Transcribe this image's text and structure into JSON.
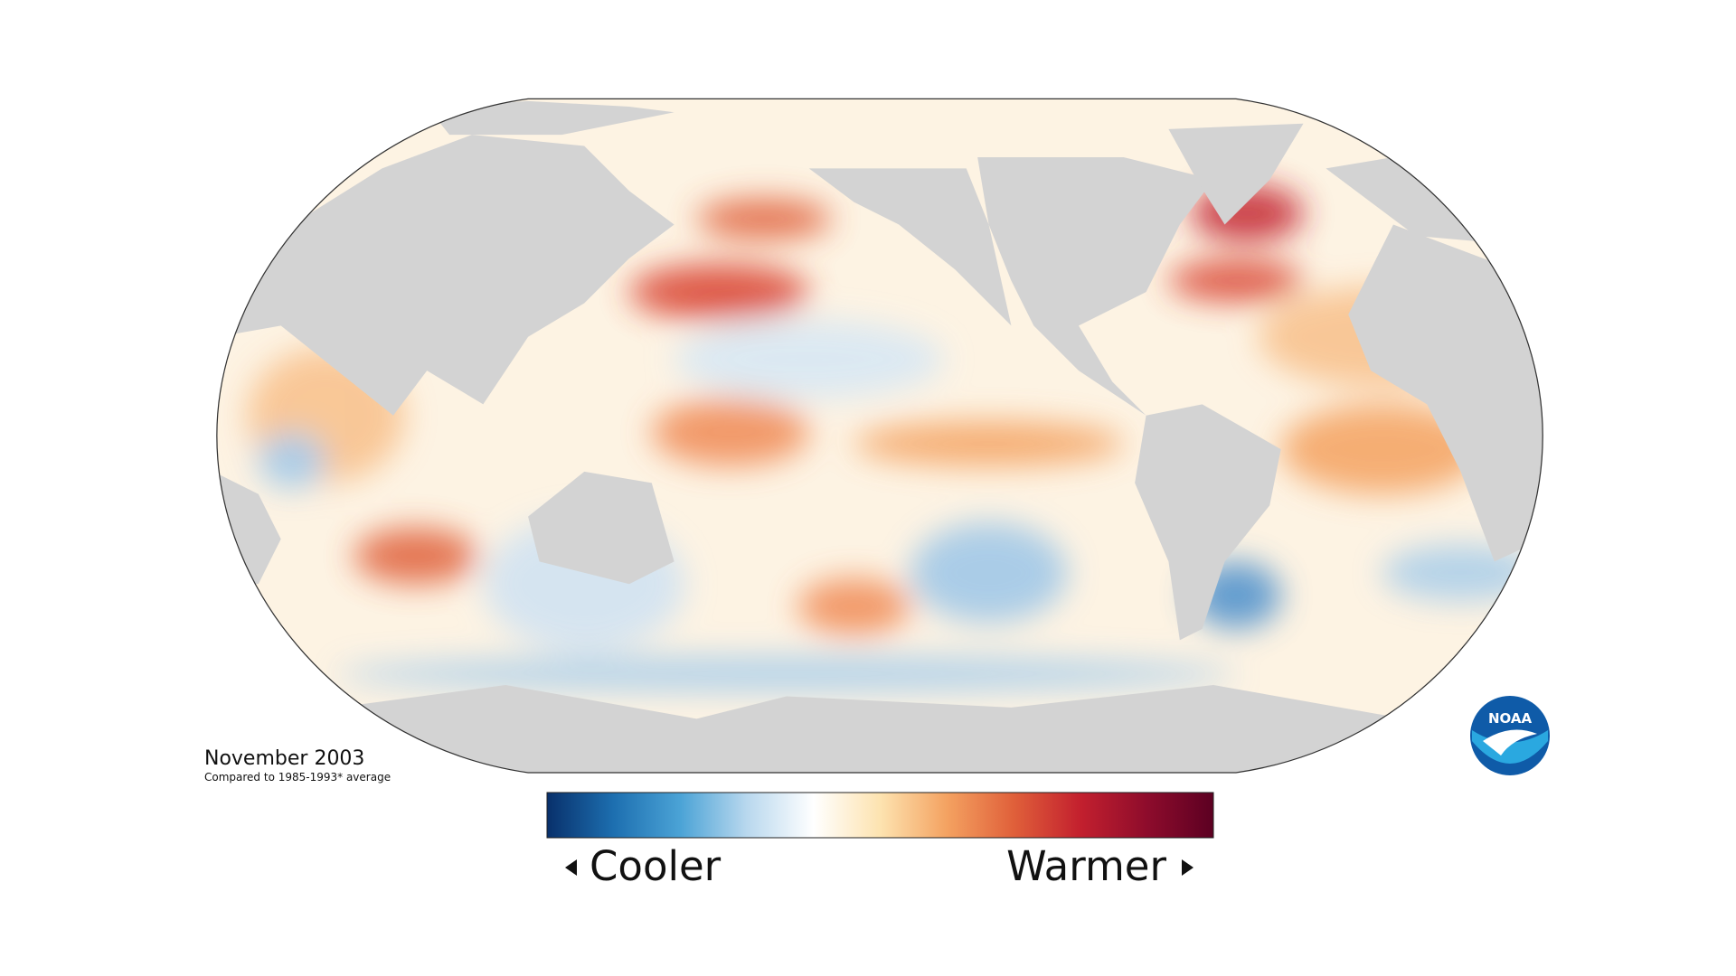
{
  "map": {
    "date": "November 2003",
    "baseline_note": "Compared to 1985-1993* average",
    "legend": {
      "low_label": "Cooler",
      "high_label": "Warmer",
      "colors": [
        "#08306b",
        "#1d6fb0",
        "#4ba3d6",
        "#b9d8ee",
        "#ffffff",
        "#fde3b0",
        "#f4a261",
        "#e0603a",
        "#c3202e",
        "#8e0c2c",
        "#5c0022"
      ]
    },
    "logo": "NOAA"
  }
}
